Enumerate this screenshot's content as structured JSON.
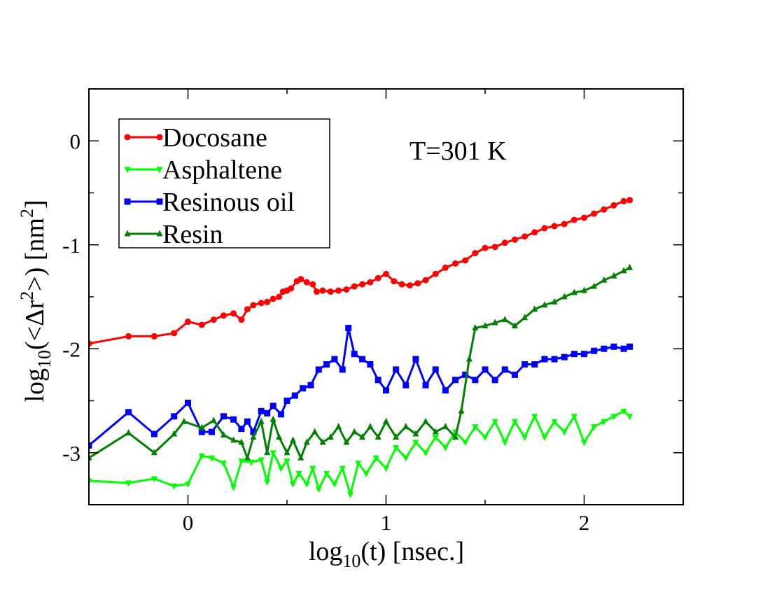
{
  "chart_data": {
    "type": "line",
    "title": "",
    "annotation": "T=301 K",
    "xlabel": {
      "base": "log",
      "sub": "10",
      "rest": "(t)  [nsec.]"
    },
    "ylabel": {
      "base": "log",
      "sub": "10",
      "mid": "(<Δr",
      "sup": "2",
      "end": ">)  [nm",
      "sup2": "2",
      "close": "]"
    },
    "xlim": [
      -0.5,
      2.5
    ],
    "ylim": [
      -3.5,
      0.5
    ],
    "xticks": [
      -0.5,
      0,
      0.5,
      1,
      1.5,
      2,
      2.5
    ],
    "xtick_labels": [
      {
        "value": 0,
        "label": "0"
      },
      {
        "value": 1,
        "label": "1"
      },
      {
        "value": 2,
        "label": "2"
      }
    ],
    "yticks": [
      -3.5,
      -3,
      -2.5,
      -2,
      -1.5,
      -1,
      -0.5,
      0,
      0.5
    ],
    "ytick_labels": [
      {
        "value": 0,
        "label": "0"
      },
      {
        "value": -1,
        "label": "-1"
      },
      {
        "value": -2,
        "label": "-2"
      },
      {
        "value": -3,
        "label": "-3"
      }
    ],
    "legend_position": "top-left",
    "series": [
      {
        "name": "Docosane",
        "color": "#ff0000",
        "marker": "circle",
        "points": [
          [
            -0.5,
            -1.95
          ],
          [
            -0.3,
            -1.88
          ],
          [
            -0.17,
            -1.88
          ],
          [
            -0.07,
            -1.85
          ],
          [
            0.0,
            -1.74
          ],
          [
            0.07,
            -1.77
          ],
          [
            0.13,
            -1.72
          ],
          [
            0.18,
            -1.68
          ],
          [
            0.23,
            -1.66
          ],
          [
            0.27,
            -1.72
          ],
          [
            0.3,
            -1.62
          ],
          [
            0.33,
            -1.58
          ],
          [
            0.37,
            -1.56
          ],
          [
            0.4,
            -1.55
          ],
          [
            0.43,
            -1.52
          ],
          [
            0.46,
            -1.5
          ],
          [
            0.48,
            -1.45
          ],
          [
            0.5,
            -1.44
          ],
          [
            0.52,
            -1.42
          ],
          [
            0.55,
            -1.35
          ],
          [
            0.57,
            -1.33
          ],
          [
            0.6,
            -1.36
          ],
          [
            0.63,
            -1.38
          ],
          [
            0.65,
            -1.45
          ],
          [
            0.68,
            -1.44
          ],
          [
            0.72,
            -1.45
          ],
          [
            0.76,
            -1.44
          ],
          [
            0.8,
            -1.43
          ],
          [
            0.84,
            -1.4
          ],
          [
            0.88,
            -1.38
          ],
          [
            0.92,
            -1.36
          ],
          [
            0.96,
            -1.32
          ],
          [
            1.0,
            -1.28
          ],
          [
            1.04,
            -1.35
          ],
          [
            1.08,
            -1.38
          ],
          [
            1.12,
            -1.39
          ],
          [
            1.16,
            -1.37
          ],
          [
            1.2,
            -1.34
          ],
          [
            1.25,
            -1.28
          ],
          [
            1.3,
            -1.22
          ],
          [
            1.35,
            -1.18
          ],
          [
            1.4,
            -1.15
          ],
          [
            1.45,
            -1.08
          ],
          [
            1.5,
            -1.03
          ],
          [
            1.55,
            -1.02
          ],
          [
            1.6,
            -0.98
          ],
          [
            1.65,
            -0.95
          ],
          [
            1.7,
            -0.92
          ],
          [
            1.75,
            -0.88
          ],
          [
            1.8,
            -0.84
          ],
          [
            1.85,
            -0.82
          ],
          [
            1.9,
            -0.8
          ],
          [
            1.95,
            -0.76
          ],
          [
            2.0,
            -0.74
          ],
          [
            2.05,
            -0.7
          ],
          [
            2.1,
            -0.66
          ],
          [
            2.15,
            -0.62
          ],
          [
            2.2,
            -0.58
          ],
          [
            2.23,
            -0.57
          ]
        ]
      },
      {
        "name": "Asphaltene",
        "color": "#00ff00",
        "marker": "triangle-down",
        "points": [
          [
            -0.5,
            -3.27
          ],
          [
            -0.3,
            -3.29
          ],
          [
            -0.17,
            -3.25
          ],
          [
            -0.07,
            -3.32
          ],
          [
            0.0,
            -3.3
          ],
          [
            0.07,
            -3.03
          ],
          [
            0.12,
            -3.05
          ],
          [
            0.18,
            -3.1
          ],
          [
            0.23,
            -3.33
          ],
          [
            0.27,
            -3.08
          ],
          [
            0.32,
            -3.09
          ],
          [
            0.37,
            -3.07
          ],
          [
            0.4,
            -3.28
          ],
          [
            0.43,
            -3.0
          ],
          [
            0.47,
            -3.15
          ],
          [
            0.5,
            -3.08
          ],
          [
            0.53,
            -3.3
          ],
          [
            0.56,
            -3.2
          ],
          [
            0.6,
            -3.3
          ],
          [
            0.63,
            -3.15
          ],
          [
            0.66,
            -3.35
          ],
          [
            0.7,
            -3.2
          ],
          [
            0.74,
            -3.3
          ],
          [
            0.78,
            -3.15
          ],
          [
            0.82,
            -3.4
          ],
          [
            0.86,
            -3.1
          ],
          [
            0.9,
            -3.2
          ],
          [
            0.95,
            -3.05
          ],
          [
            1.0,
            -3.15
          ],
          [
            1.05,
            -2.95
          ],
          [
            1.1,
            -3.05
          ],
          [
            1.15,
            -2.9
          ],
          [
            1.2,
            -3.0
          ],
          [
            1.25,
            -2.85
          ],
          [
            1.3,
            -2.95
          ],
          [
            1.35,
            -2.8
          ],
          [
            1.4,
            -2.9
          ],
          [
            1.45,
            -2.75
          ],
          [
            1.5,
            -2.85
          ],
          [
            1.55,
            -2.7
          ],
          [
            1.6,
            -2.9
          ],
          [
            1.65,
            -2.7
          ],
          [
            1.7,
            -2.85
          ],
          [
            1.75,
            -2.65
          ],
          [
            1.8,
            -2.85
          ],
          [
            1.85,
            -2.7
          ],
          [
            1.9,
            -2.8
          ],
          [
            1.95,
            -2.65
          ],
          [
            2.0,
            -2.9
          ],
          [
            2.05,
            -2.75
          ],
          [
            2.1,
            -2.7
          ],
          [
            2.15,
            -2.65
          ],
          [
            2.2,
            -2.6
          ],
          [
            2.23,
            -2.65
          ]
        ]
      },
      {
        "name": "Resinous oil",
        "color": "#0000ff",
        "marker": "square",
        "points": [
          [
            -0.5,
            -2.93
          ],
          [
            -0.3,
            -2.61
          ],
          [
            -0.17,
            -2.82
          ],
          [
            -0.07,
            -2.65
          ],
          [
            0.0,
            -2.52
          ],
          [
            0.07,
            -2.8
          ],
          [
            0.12,
            -2.8
          ],
          [
            0.18,
            -2.65
          ],
          [
            0.23,
            -2.68
          ],
          [
            0.27,
            -2.77
          ],
          [
            0.3,
            -2.7
          ],
          [
            0.33,
            -2.8
          ],
          [
            0.37,
            -2.6
          ],
          [
            0.4,
            -2.62
          ],
          [
            0.43,
            -2.55
          ],
          [
            0.47,
            -2.63
          ],
          [
            0.5,
            -2.5
          ],
          [
            0.54,
            -2.45
          ],
          [
            0.58,
            -2.38
          ],
          [
            0.62,
            -2.35
          ],
          [
            0.66,
            -2.2
          ],
          [
            0.7,
            -2.15
          ],
          [
            0.74,
            -2.1
          ],
          [
            0.78,
            -2.2
          ],
          [
            0.81,
            -1.8
          ],
          [
            0.84,
            -2.05
          ],
          [
            0.88,
            -2.1
          ],
          [
            0.92,
            -2.15
          ],
          [
            0.96,
            -2.3
          ],
          [
            1.0,
            -2.4
          ],
          [
            1.05,
            -2.2
          ],
          [
            1.1,
            -2.35
          ],
          [
            1.15,
            -2.1
          ],
          [
            1.2,
            -2.35
          ],
          [
            1.25,
            -2.2
          ],
          [
            1.3,
            -2.4
          ],
          [
            1.35,
            -2.3
          ],
          [
            1.4,
            -2.25
          ],
          [
            1.45,
            -2.3
          ],
          [
            1.5,
            -2.2
          ],
          [
            1.55,
            -2.3
          ],
          [
            1.6,
            -2.2
          ],
          [
            1.65,
            -2.25
          ],
          [
            1.7,
            -2.15
          ],
          [
            1.75,
            -2.15
          ],
          [
            1.8,
            -2.1
          ],
          [
            1.85,
            -2.1
          ],
          [
            1.9,
            -2.08
          ],
          [
            1.95,
            -2.05
          ],
          [
            2.0,
            -2.05
          ],
          [
            2.05,
            -2.02
          ],
          [
            2.1,
            -2.0
          ],
          [
            2.15,
            -1.98
          ],
          [
            2.2,
            -2.0
          ],
          [
            2.23,
            -1.98
          ]
        ]
      },
      {
        "name": "Resin",
        "color": "#008000",
        "marker": "triangle-up",
        "points": [
          [
            -0.5,
            -3.05
          ],
          [
            -0.3,
            -2.81
          ],
          [
            -0.17,
            -3.0
          ],
          [
            -0.07,
            -2.82
          ],
          [
            -0.02,
            -2.7
          ],
          [
            0.07,
            -2.76
          ],
          [
            0.13,
            -2.69
          ],
          [
            0.18,
            -2.83
          ],
          [
            0.23,
            -2.88
          ],
          [
            0.27,
            -2.9
          ],
          [
            0.3,
            -3.05
          ],
          [
            0.33,
            -2.85
          ],
          [
            0.37,
            -2.7
          ],
          [
            0.4,
            -3.0
          ],
          [
            0.43,
            -2.68
          ],
          [
            0.46,
            -2.85
          ],
          [
            0.5,
            -3.0
          ],
          [
            0.53,
            -2.88
          ],
          [
            0.57,
            -3.05
          ],
          [
            0.6,
            -2.9
          ],
          [
            0.64,
            -2.8
          ],
          [
            0.68,
            -2.9
          ],
          [
            0.72,
            -2.85
          ],
          [
            0.76,
            -2.75
          ],
          [
            0.8,
            -2.9
          ],
          [
            0.84,
            -2.8
          ],
          [
            0.88,
            -2.85
          ],
          [
            0.92,
            -2.75
          ],
          [
            0.96,
            -2.85
          ],
          [
            1.0,
            -2.7
          ],
          [
            1.05,
            -2.85
          ],
          [
            1.1,
            -2.75
          ],
          [
            1.15,
            -2.82
          ],
          [
            1.2,
            -2.7
          ],
          [
            1.25,
            -2.8
          ],
          [
            1.3,
            -2.75
          ],
          [
            1.35,
            -2.85
          ],
          [
            1.38,
            -2.6
          ],
          [
            1.42,
            -2.1
          ],
          [
            1.45,
            -1.8
          ],
          [
            1.5,
            -1.78
          ],
          [
            1.55,
            -1.75
          ],
          [
            1.6,
            -1.72
          ],
          [
            1.65,
            -1.78
          ],
          [
            1.7,
            -1.7
          ],
          [
            1.75,
            -1.62
          ],
          [
            1.8,
            -1.58
          ],
          [
            1.85,
            -1.55
          ],
          [
            1.9,
            -1.5
          ],
          [
            1.95,
            -1.46
          ],
          [
            2.0,
            -1.44
          ],
          [
            2.05,
            -1.4
          ],
          [
            2.1,
            -1.34
          ],
          [
            2.15,
            -1.3
          ],
          [
            2.2,
            -1.25
          ],
          [
            2.23,
            -1.22
          ]
        ]
      }
    ]
  }
}
